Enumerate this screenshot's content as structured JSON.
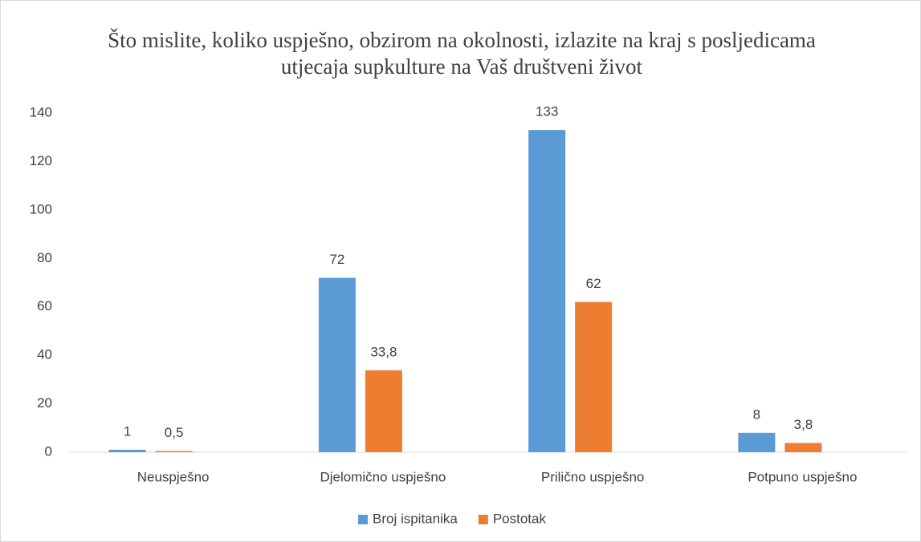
{
  "chart_data": {
    "type": "bar",
    "title": "Što mislite, koliko uspješno, obzirom na okolnosti, izlazite na kraj s posljedicama utjecaja supkulture na Vaš društveni život",
    "categories": [
      "Neuspješno",
      "Djelomično uspješno",
      "Prilično uspješno",
      "Potpuno uspješno"
    ],
    "series": [
      {
        "name": "Broj ispitanika",
        "color": "#5b9bd5",
        "values": [
          1,
          72,
          133,
          8
        ]
      },
      {
        "name": "Postotak",
        "color": "#ed7d31",
        "values": [
          0.5,
          33.8,
          62,
          3.8
        ],
        "value_labels": [
          "0,5",
          "33,8",
          "62",
          "3,8"
        ]
      }
    ],
    "ylim": [
      0,
      140
    ],
    "yticks": [
      0,
      20,
      40,
      60,
      80,
      100,
      120,
      140
    ],
    "grid": false,
    "legend": "bottom"
  }
}
